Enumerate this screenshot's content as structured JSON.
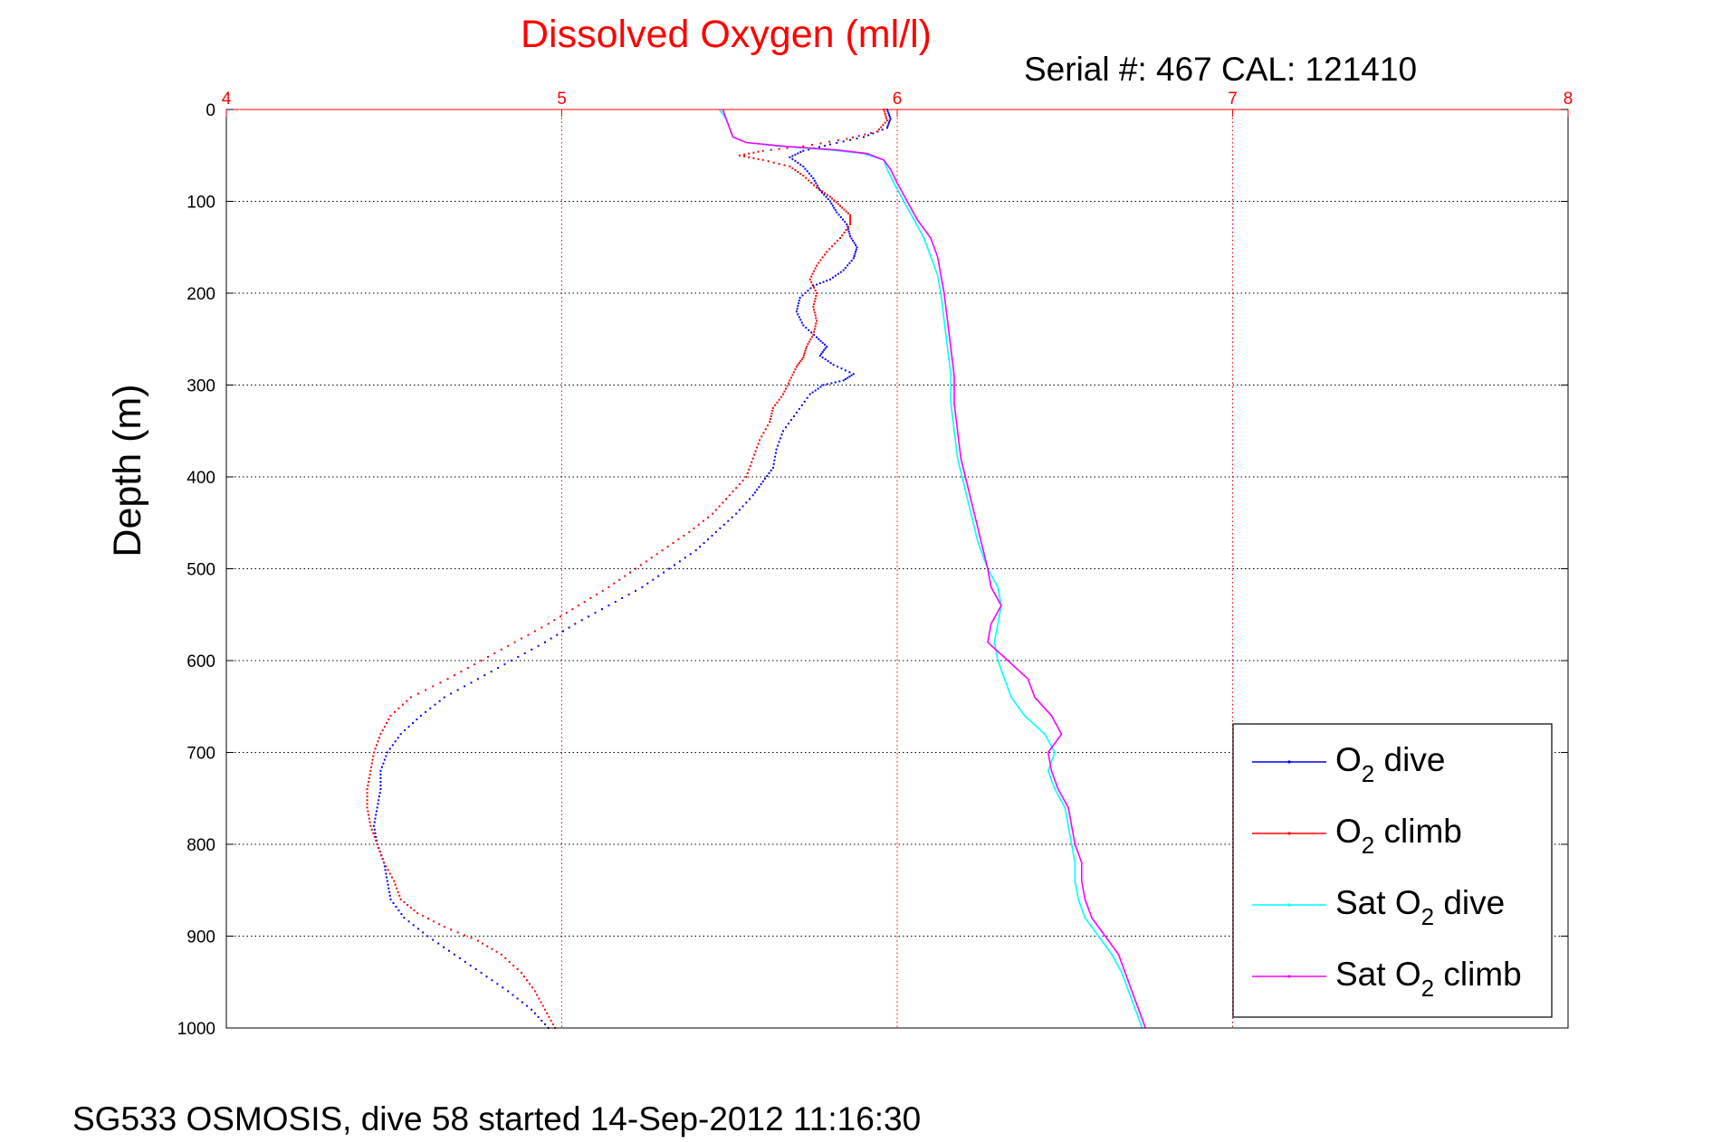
{
  "chart_data": {
    "type": "scatter",
    "title": "Dissolved Oxygen (ml/l)",
    "serial_text": "Serial #: 467  CAL: 121410",
    "ylabel": "Depth (m)",
    "footer": "SG533 OSMOSIS, dive 58 started 14-Sep-2012 11:16:30",
    "xlim": [
      4,
      8
    ],
    "ylim": [
      0,
      1000
    ],
    "y_reversed": true,
    "x_axis_position": "top",
    "x_ticks": [
      4,
      5,
      6,
      7,
      8
    ],
    "y_ticks": [
      0,
      100,
      200,
      300,
      400,
      500,
      600,
      700,
      800,
      900,
      1000
    ],
    "grid": true,
    "legend_position": "bottom-right",
    "colors": {
      "title": "#ff0000",
      "x_axis": "#ff0000",
      "grid_x": "#ff0000",
      "grid_y": "#000000"
    },
    "legend": [
      {
        "prefix": "O",
        "sub": "2",
        "suffix": " dive",
        "color": "#0000ff"
      },
      {
        "prefix": "O",
        "sub": "2",
        "suffix": " climb",
        "color": "#ff0000"
      },
      {
        "prefix": "Sat O",
        "sub": "2",
        "suffix": " dive",
        "color": "#00ffff"
      },
      {
        "prefix": "Sat O",
        "sub": "2",
        "suffix": " climb",
        "color": "#ff00ff"
      }
    ],
    "series": [
      {
        "name": "O2 dive",
        "color": "#0000ff",
        "style": "dots",
        "points": [
          [
            5.97,
            0
          ],
          [
            5.98,
            10
          ],
          [
            5.97,
            20
          ],
          [
            5.9,
            30
          ],
          [
            5.8,
            38
          ],
          [
            5.72,
            45
          ],
          [
            5.68,
            52
          ],
          [
            5.72,
            62
          ],
          [
            5.75,
            75
          ],
          [
            5.77,
            88
          ],
          [
            5.8,
            100
          ],
          [
            5.82,
            112
          ],
          [
            5.85,
            125
          ],
          [
            5.86,
            138
          ],
          [
            5.88,
            150
          ],
          [
            5.87,
            162
          ],
          [
            5.84,
            175
          ],
          [
            5.8,
            185
          ],
          [
            5.75,
            192
          ],
          [
            5.71,
            205
          ],
          [
            5.7,
            220
          ],
          [
            5.72,
            235
          ],
          [
            5.76,
            248
          ],
          [
            5.79,
            258
          ],
          [
            5.77,
            268
          ],
          [
            5.81,
            278
          ],
          [
            5.87,
            288
          ],
          [
            5.84,
            295
          ],
          [
            5.78,
            300
          ],
          [
            5.74,
            310
          ],
          [
            5.7,
            330
          ],
          [
            5.66,
            350
          ],
          [
            5.64,
            370
          ],
          [
            5.63,
            390
          ],
          [
            5.6,
            405
          ],
          [
            5.57,
            420
          ],
          [
            5.52,
            440
          ],
          [
            5.46,
            460
          ],
          [
            5.4,
            480
          ],
          [
            5.32,
            500
          ],
          [
            5.24,
            520
          ],
          [
            5.14,
            540
          ],
          [
            5.04,
            560
          ],
          [
            4.95,
            580
          ],
          [
            4.85,
            600
          ],
          [
            4.75,
            620
          ],
          [
            4.65,
            640
          ],
          [
            4.58,
            660
          ],
          [
            4.52,
            680
          ],
          [
            4.48,
            700
          ],
          [
            4.46,
            720
          ],
          [
            4.46,
            740
          ],
          [
            4.45,
            760
          ],
          [
            4.44,
            780
          ],
          [
            4.45,
            800
          ],
          [
            4.47,
            820
          ],
          [
            4.48,
            840
          ],
          [
            4.49,
            860
          ],
          [
            4.53,
            880
          ],
          [
            4.6,
            900
          ],
          [
            4.68,
            920
          ],
          [
            4.76,
            940
          ],
          [
            4.84,
            960
          ],
          [
            4.91,
            980
          ],
          [
            4.96,
            1000
          ]
        ]
      },
      {
        "name": "O2 climb",
        "color": "#ff0000",
        "style": "dots",
        "points": [
          [
            5.96,
            0
          ],
          [
            5.97,
            12
          ],
          [
            5.94,
            24
          ],
          [
            5.85,
            32
          ],
          [
            5.72,
            40
          ],
          [
            5.6,
            45
          ],
          [
            5.53,
            50
          ],
          [
            5.6,
            55
          ],
          [
            5.68,
            62
          ],
          [
            5.72,
            72
          ],
          [
            5.76,
            85
          ],
          [
            5.8,
            95
          ],
          [
            5.83,
            105
          ],
          [
            5.86,
            115
          ],
          [
            5.86,
            125
          ],
          [
            5.83,
            140
          ],
          [
            5.79,
            155
          ],
          [
            5.76,
            170
          ],
          [
            5.74,
            185
          ],
          [
            5.76,
            200
          ],
          [
            5.75,
            215
          ],
          [
            5.76,
            230
          ],
          [
            5.75,
            245
          ],
          [
            5.73,
            258
          ],
          [
            5.72,
            270
          ],
          [
            5.7,
            280
          ],
          [
            5.68,
            295
          ],
          [
            5.66,
            310
          ],
          [
            5.63,
            325
          ],
          [
            5.62,
            340
          ],
          [
            5.59,
            360
          ],
          [
            5.57,
            380
          ],
          [
            5.55,
            400
          ],
          [
            5.5,
            420
          ],
          [
            5.45,
            440
          ],
          [
            5.38,
            460
          ],
          [
            5.3,
            480
          ],
          [
            5.22,
            500
          ],
          [
            5.14,
            520
          ],
          [
            5.05,
            540
          ],
          [
            4.96,
            560
          ],
          [
            4.86,
            580
          ],
          [
            4.76,
            600
          ],
          [
            4.66,
            620
          ],
          [
            4.55,
            640
          ],
          [
            4.49,
            660
          ],
          [
            4.46,
            680
          ],
          [
            4.44,
            700
          ],
          [
            4.43,
            720
          ],
          [
            4.42,
            740
          ],
          [
            4.42,
            760
          ],
          [
            4.43,
            780
          ],
          [
            4.45,
            800
          ],
          [
            4.47,
            820
          ],
          [
            4.5,
            840
          ],
          [
            4.52,
            860
          ],
          [
            4.57,
            875
          ],
          [
            4.65,
            890
          ],
          [
            4.75,
            905
          ],
          [
            4.82,
            920
          ],
          [
            4.88,
            940
          ],
          [
            4.92,
            960
          ],
          [
            4.95,
            980
          ],
          [
            4.98,
            1000
          ]
        ]
      },
      {
        "name": "Sat O2 dive",
        "color": "#00ffff",
        "style": "line",
        "points": [
          [
            5.47,
            0
          ],
          [
            5.49,
            10
          ],
          [
            5.5,
            20
          ],
          [
            5.51,
            30
          ],
          [
            5.55,
            36
          ],
          [
            5.65,
            40
          ],
          [
            5.8,
            44
          ],
          [
            5.9,
            48
          ],
          [
            5.96,
            55
          ],
          [
            5.97,
            65
          ],
          [
            5.99,
            80
          ],
          [
            6.02,
            100
          ],
          [
            6.05,
            120
          ],
          [
            6.08,
            140
          ],
          [
            6.1,
            160
          ],
          [
            6.12,
            180
          ],
          [
            6.13,
            200
          ],
          [
            6.14,
            230
          ],
          [
            6.15,
            260
          ],
          [
            6.16,
            290
          ],
          [
            6.16,
            320
          ],
          [
            6.17,
            350
          ],
          [
            6.18,
            380
          ],
          [
            6.2,
            410
          ],
          [
            6.22,
            440
          ],
          [
            6.24,
            470
          ],
          [
            6.27,
            500
          ],
          [
            6.3,
            520
          ],
          [
            6.31,
            540
          ],
          [
            6.3,
            560
          ],
          [
            6.29,
            580
          ],
          [
            6.3,
            600
          ],
          [
            6.32,
            620
          ],
          [
            6.34,
            640
          ],
          [
            6.38,
            660
          ],
          [
            6.44,
            680
          ],
          [
            6.47,
            700
          ],
          [
            6.45,
            720
          ],
          [
            6.47,
            740
          ],
          [
            6.5,
            760
          ],
          [
            6.51,
            780
          ],
          [
            6.52,
            800
          ],
          [
            6.53,
            820
          ],
          [
            6.53,
            840
          ],
          [
            6.54,
            860
          ],
          [
            6.56,
            880
          ],
          [
            6.6,
            900
          ],
          [
            6.64,
            920
          ],
          [
            6.67,
            940
          ],
          [
            6.69,
            960
          ],
          [
            6.71,
            980
          ],
          [
            6.73,
            1000
          ]
        ]
      },
      {
        "name": "Sat O2 climb",
        "color": "#ff00ff",
        "style": "line",
        "points": [
          [
            5.48,
            0
          ],
          [
            5.49,
            10
          ],
          [
            5.5,
            20
          ],
          [
            5.51,
            30
          ],
          [
            5.55,
            36
          ],
          [
            5.66,
            40
          ],
          [
            5.82,
            44
          ],
          [
            5.91,
            48
          ],
          [
            5.96,
            55
          ],
          [
            5.98,
            65
          ],
          [
            6.0,
            80
          ],
          [
            6.03,
            100
          ],
          [
            6.06,
            120
          ],
          [
            6.1,
            140
          ],
          [
            6.12,
            160
          ],
          [
            6.13,
            180
          ],
          [
            6.14,
            200
          ],
          [
            6.15,
            230
          ],
          [
            6.16,
            260
          ],
          [
            6.17,
            290
          ],
          [
            6.17,
            320
          ],
          [
            6.18,
            350
          ],
          [
            6.19,
            380
          ],
          [
            6.21,
            410
          ],
          [
            6.23,
            440
          ],
          [
            6.25,
            470
          ],
          [
            6.27,
            500
          ],
          [
            6.28,
            520
          ],
          [
            6.31,
            540
          ],
          [
            6.28,
            560
          ],
          [
            6.27,
            580
          ],
          [
            6.33,
            600
          ],
          [
            6.39,
            620
          ],
          [
            6.41,
            640
          ],
          [
            6.46,
            660
          ],
          [
            6.49,
            680
          ],
          [
            6.45,
            700
          ],
          [
            6.46,
            720
          ],
          [
            6.48,
            740
          ],
          [
            6.51,
            760
          ],
          [
            6.52,
            780
          ],
          [
            6.53,
            800
          ],
          [
            6.55,
            820
          ],
          [
            6.55,
            840
          ],
          [
            6.56,
            860
          ],
          [
            6.58,
            880
          ],
          [
            6.62,
            900
          ],
          [
            6.66,
            920
          ],
          [
            6.68,
            940
          ],
          [
            6.7,
            960
          ],
          [
            6.72,
            980
          ],
          [
            6.74,
            1000
          ]
        ]
      }
    ]
  }
}
